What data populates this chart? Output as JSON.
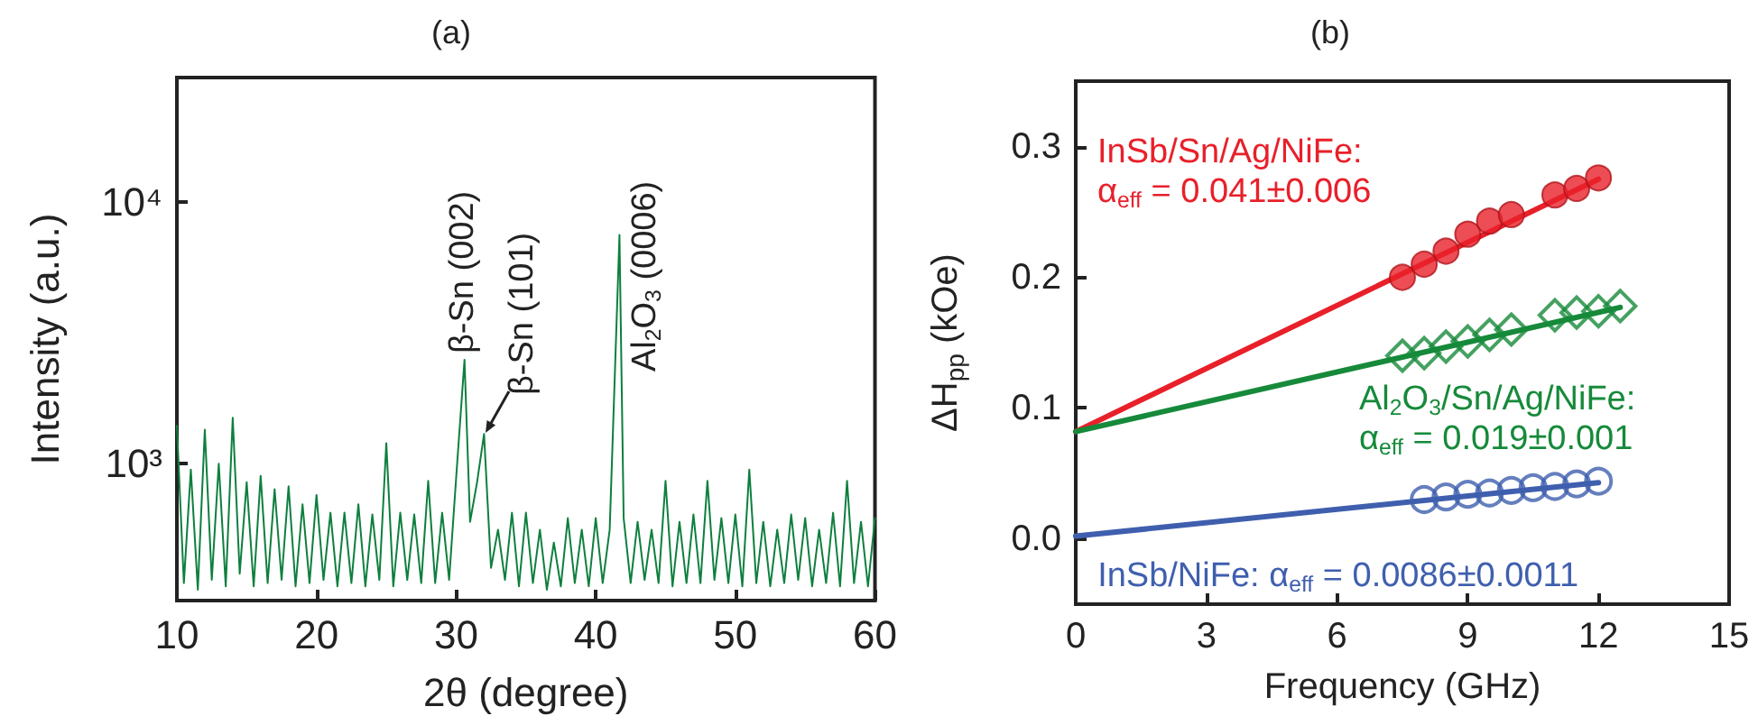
{
  "chart_data": [
    {
      "type": "line",
      "title": "(a)",
      "xlabel": "2θ (degree)",
      "ylabel": "Intensity (a.u.)",
      "log": "y",
      "xlim": [
        10,
        60
      ],
      "xticks": [
        10,
        20,
        30,
        40,
        50,
        60
      ],
      "ylim": [
        300,
        30000
      ],
      "yticks": [
        {
          "value": 1000,
          "label": "10³"
        },
        {
          "value": 10000,
          "label": "10⁴"
        }
      ],
      "series": [
        {
          "color": "#0e7f3e",
          "marker": "none",
          "x": [
            10,
            10.5,
            11,
            11.5,
            12,
            12.5,
            13,
            13.5,
            14,
            14.5,
            15,
            15.5,
            16,
            16.5,
            17,
            17.5,
            18,
            18.5,
            19,
            19.5,
            20,
            20.5,
            21,
            21.5,
            22,
            22.5,
            23,
            23.5,
            24,
            24.5,
            25,
            25.5,
            26,
            26.5,
            27,
            27.5,
            28,
            28.5,
            29,
            29.5,
            30,
            30.6,
            31,
            31.5,
            32,
            32.5,
            33,
            33.5,
            34,
            34.5,
            35,
            35.5,
            36,
            36.5,
            37,
            37.5,
            38,
            38.5,
            39,
            39.5,
            40,
            40.5,
            41,
            41.7,
            42,
            42.5,
            43,
            43.5,
            44,
            44.5,
            45,
            45.5,
            46,
            46.5,
            47,
            47.5,
            48,
            48.5,
            49,
            49.5,
            50,
            50.5,
            51,
            51.5,
            52,
            52.5,
            53,
            53.5,
            54,
            54.5,
            55,
            55.5,
            56,
            56.5,
            57,
            57.5,
            58,
            58.5,
            59,
            59.5,
            60
          ],
          "values": [
            1400,
            350,
            950,
            330,
            1350,
            360,
            1000,
            340,
            1500,
            380,
            850,
            340,
            900,
            350,
            800,
            360,
            820,
            340,
            700,
            350,
            760,
            360,
            650,
            340,
            650,
            350,
            700,
            340,
            640,
            360,
            1200,
            340,
            650,
            360,
            640,
            350,
            860,
            350,
            650,
            360,
            880,
            2500,
            600,
            850,
            1300,
            400,
            560,
            360,
            650,
            340,
            650,
            350,
            560,
            330,
            500,
            340,
            620,
            350,
            560,
            340,
            620,
            350,
            560,
            7500,
            620,
            350,
            600,
            360,
            560,
            350,
            860,
            340,
            600,
            350,
            640,
            350,
            860,
            360,
            620,
            350,
            640,
            340,
            950,
            350,
            600,
            340,
            560,
            350,
            640,
            360,
            620,
            340,
            560,
            350,
            650,
            340,
            860,
            350,
            600,
            340,
            620
          ]
        }
      ],
      "annotations": [
        {
          "text": "β-Sn (002)",
          "x": 30.6,
          "y": 2500
        },
        {
          "text": "β-Sn (101)",
          "x": 32,
          "y": 1300
        },
        {
          "text": "Al$_{2}$O$_{3}$ (0006)",
          "x": 41.7,
          "y": 7500
        }
      ]
    },
    {
      "type": "scatter",
      "title": "(b)",
      "xlabel": "Frequency (GHz)",
      "ylabel": "ΔH$_{pp}$ (kOe)",
      "xlim": [
        0,
        15
      ],
      "xticks": [
        0,
        3,
        6,
        9,
        12,
        15
      ],
      "ylim": [
        -0.05,
        0.35
      ],
      "yticks": [
        {
          "value": 0,
          "label": "0.0"
        },
        0.1,
        0.2,
        0.3
      ],
      "series": [
        {
          "name": "InSb/Sn/Ag/NiFe:\nα$_{eff}$ = 0.041±0.006",
          "color": "#e8202a",
          "marker": "circle",
          "x": [
            7.5,
            8,
            8.5,
            9,
            9.5,
            10,
            11,
            11.5,
            12
          ],
          "values": [
            0.2,
            0.21,
            0.22,
            0.233,
            0.243,
            0.248,
            0.263,
            0.268,
            0.276
          ]
        },
        {
          "name": "Al$_{2}$O$_{3}$/Sn/Ag/NiFe:\nα$_{eff}$ = 0.019±0.001",
          "color": "#168a3a",
          "marker": "diamond",
          "x": [
            7.5,
            8,
            8.5,
            9,
            9.5,
            10,
            11,
            11.5,
            12,
            12.5
          ],
          "values": [
            0.14,
            0.142,
            0.147,
            0.151,
            0.156,
            0.16,
            0.171,
            0.173,
            0.174,
            0.178
          ]
        },
        {
          "name": "InSb/NiFe: α$_{eff}$ = 0.0086±0.0011",
          "color": "#3f5fae",
          "marker": "circle",
          "x": [
            8,
            8.5,
            9,
            9.5,
            10,
            10.5,
            11,
            11.5,
            12
          ],
          "values": [
            0.03,
            0.032,
            0.034,
            0.035,
            0.037,
            0.039,
            0.04,
            0.042,
            0.044
          ]
        },
        {
          "type": "line",
          "color": "#e8202a",
          "marker": "none",
          "x": [
            0,
            12
          ],
          "values": [
            0.082,
            0.275
          ]
        },
        {
          "type": "line",
          "color": "#168a3a",
          "marker": "none",
          "x": [
            0,
            12.5
          ],
          "values": [
            0.082,
            0.177
          ]
        },
        {
          "type": "line",
          "color": "#3f5fae",
          "marker": "none",
          "x": [
            0,
            12
          ],
          "values": [
            0.002,
            0.043
          ]
        }
      ]
    }
  ]
}
